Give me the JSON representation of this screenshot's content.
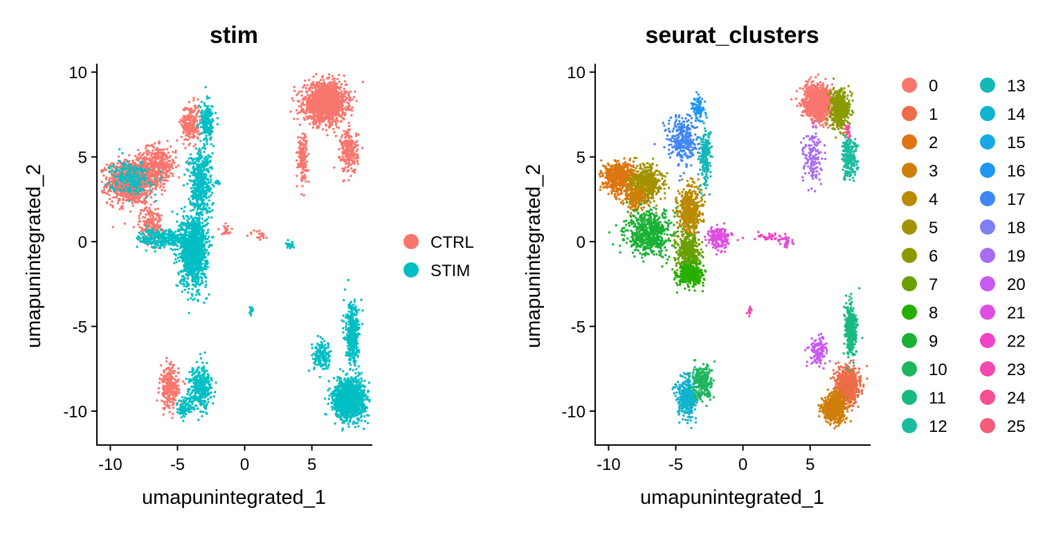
{
  "chart_data": [
    {
      "type": "scatter",
      "title": "stim",
      "xlabel": "umapunintegrated_1",
      "ylabel": "umapunintegrated_2",
      "xlim": [
        -11,
        9.5
      ],
      "ylim": [
        -12,
        10.5
      ],
      "xticks": [
        -10,
        -5,
        0,
        5
      ],
      "yticks": [
        -10,
        -5,
        0,
        5,
        10
      ],
      "grid": false,
      "legend": "right",
      "groups": [
        {
          "name": "CTRL",
          "color": "#F8766D"
        },
        {
          "name": "STIM",
          "color": "#00BFC4"
        }
      ],
      "regions": [
        {
          "group": "CTRL",
          "cx": -8.5,
          "cy": 3.5,
          "sx": 1.2,
          "sy": 0.9,
          "n": 1000
        },
        {
          "group": "CTRL",
          "cx": -6.5,
          "cy": 4.5,
          "sx": 1.0,
          "sy": 0.8,
          "n": 400
        },
        {
          "group": "CTRL",
          "cx": -4.0,
          "cy": 7.0,
          "sx": 0.5,
          "sy": 0.8,
          "n": 250
        },
        {
          "group": "CTRL",
          "cx": -7.0,
          "cy": 1.0,
          "sx": 0.6,
          "sy": 0.8,
          "n": 200
        },
        {
          "group": "CTRL",
          "cx": 6.0,
          "cy": 8.2,
          "sx": 1.1,
          "sy": 0.8,
          "n": 1500
        },
        {
          "group": "CTRL",
          "cx": 4.3,
          "cy": 5.0,
          "sx": 0.25,
          "sy": 1.0,
          "n": 150
        },
        {
          "group": "CTRL",
          "cx": 7.8,
          "cy": 5.3,
          "sx": 0.45,
          "sy": 0.9,
          "n": 250
        },
        {
          "group": "CTRL",
          "cx": -5.6,
          "cy": -8.6,
          "sx": 0.5,
          "sy": 0.9,
          "n": 250
        },
        {
          "group": "CTRL",
          "cx": -1.3,
          "cy": 0.7,
          "sx": 0.3,
          "sy": 0.2,
          "n": 20
        },
        {
          "group": "CTRL",
          "cx": 1.0,
          "cy": 0.4,
          "sx": 0.5,
          "sy": 0.2,
          "n": 20
        },
        {
          "group": "STIM",
          "cx": -3.8,
          "cy": -0.5,
          "sx": 0.7,
          "sy": 1.5,
          "n": 1200
        },
        {
          "group": "STIM",
          "cx": -3.3,
          "cy": 3.5,
          "sx": 0.6,
          "sy": 1.4,
          "n": 500
        },
        {
          "group": "STIM",
          "cx": -6.0,
          "cy": 0.2,
          "sx": 1.3,
          "sy": 0.4,
          "n": 300
        },
        {
          "group": "STIM",
          "cx": -2.8,
          "cy": 7.0,
          "sx": 0.35,
          "sy": 0.8,
          "n": 200
        },
        {
          "group": "STIM",
          "cx": -8.5,
          "cy": 3.8,
          "sx": 1.0,
          "sy": 0.7,
          "n": 250
        },
        {
          "group": "STIM",
          "cx": 7.8,
          "cy": -9.3,
          "sx": 0.8,
          "sy": 0.8,
          "n": 1500
        },
        {
          "group": "STIM",
          "cx": 8.0,
          "cy": -5.5,
          "sx": 0.35,
          "sy": 1.2,
          "n": 400
        },
        {
          "group": "STIM",
          "cx": 5.8,
          "cy": -6.8,
          "sx": 0.5,
          "sy": 0.6,
          "n": 150
        },
        {
          "group": "STIM",
          "cx": -3.3,
          "cy": -8.6,
          "sx": 0.6,
          "sy": 0.9,
          "n": 350
        },
        {
          "group": "STIM",
          "cx": -4.5,
          "cy": -9.8,
          "sx": 0.35,
          "sy": 0.4,
          "n": 100
        },
        {
          "group": "STIM",
          "cx": 3.3,
          "cy": -0.2,
          "sx": 0.3,
          "sy": 0.2,
          "n": 25
        },
        {
          "group": "STIM",
          "cx": 0.5,
          "cy": -4.1,
          "sx": 0.1,
          "sy": 0.2,
          "n": 15
        },
        {
          "group": "STIM",
          "cx": -2.0,
          "cy": 3.5,
          "sx": 0.1,
          "sy": 0.1,
          "n": 10
        }
      ]
    },
    {
      "type": "scatter",
      "title": "seurat_clusters",
      "xlabel": "umapunintegrated_1",
      "ylabel": "umapunintegrated_2",
      "xlim": [
        -11,
        9.5
      ],
      "ylim": [
        -12,
        10.5
      ],
      "xticks": [
        -10,
        -5,
        0,
        5
      ],
      "yticks": [
        -10,
        -5,
        0,
        5,
        10
      ],
      "grid": false,
      "legend": "right",
      "groups": [
        {
          "name": "0",
          "color": "#F8766D"
        },
        {
          "name": "1",
          "color": "#EC6D48"
        },
        {
          "name": "2",
          "color": "#DD7510"
        },
        {
          "name": "3",
          "color": "#CE7F0A"
        },
        {
          "name": "4",
          "color": "#B98B00"
        },
        {
          "name": "5",
          "color": "#A49300"
        },
        {
          "name": "6",
          "color": "#8A9A00"
        },
        {
          "name": "7",
          "color": "#69A000"
        },
        {
          "name": "8",
          "color": "#28AE00"
        },
        {
          "name": "9",
          "color": "#1AB135"
        },
        {
          "name": "10",
          "color": "#1EB65E"
        },
        {
          "name": "11",
          "color": "#18BA7F"
        },
        {
          "name": "12",
          "color": "#1BBC9E"
        },
        {
          "name": "13",
          "color": "#13B8B8"
        },
        {
          "name": "14",
          "color": "#11B3CE"
        },
        {
          "name": "15",
          "color": "#19A8E6"
        },
        {
          "name": "16",
          "color": "#1F97F2"
        },
        {
          "name": "17",
          "color": "#3E86F2"
        },
        {
          "name": "18",
          "color": "#7E7FF5"
        },
        {
          "name": "19",
          "color": "#A86CF0"
        },
        {
          "name": "20",
          "color": "#C85AF0"
        },
        {
          "name": "21",
          "color": "#DF4FE0"
        },
        {
          "name": "22",
          "color": "#EF45C6"
        },
        {
          "name": "23",
          "color": "#F548AE"
        },
        {
          "name": "24",
          "color": "#F74F94"
        },
        {
          "name": "25",
          "color": "#F55C79"
        }
      ],
      "regions": [
        {
          "group": "2",
          "cx": -9.2,
          "cy": 3.8,
          "sx": 0.8,
          "sy": 0.6,
          "n": 600
        },
        {
          "group": "5",
          "cx": -7.2,
          "cy": 3.5,
          "sx": 0.8,
          "sy": 0.7,
          "n": 500
        },
        {
          "group": "3",
          "cx": -8.0,
          "cy": 2.5,
          "sx": 0.6,
          "sy": 0.5,
          "n": 200
        },
        {
          "group": "9",
          "cx": -7.0,
          "cy": 0.5,
          "sx": 1.2,
          "sy": 0.9,
          "n": 600
        },
        {
          "group": "4",
          "cx": -4.0,
          "cy": 1.8,
          "sx": 0.6,
          "sy": 1.0,
          "n": 500
        },
        {
          "group": "7",
          "cx": -4.0,
          "cy": -0.6,
          "sx": 0.6,
          "sy": 0.8,
          "n": 400
        },
        {
          "group": "8",
          "cx": -4.0,
          "cy": -2.0,
          "sx": 0.7,
          "sy": 0.5,
          "n": 400
        },
        {
          "group": "17",
          "cx": -4.5,
          "cy": 6.0,
          "sx": 0.8,
          "sy": 1.0,
          "n": 300
        },
        {
          "group": "16",
          "cx": -3.3,
          "cy": 7.8,
          "sx": 0.3,
          "sy": 0.5,
          "n": 100
        },
        {
          "group": "13",
          "cx": -2.8,
          "cy": 5.0,
          "sx": 0.3,
          "sy": 1.2,
          "n": 200
        },
        {
          "group": "21",
          "cx": -1.8,
          "cy": 0.2,
          "sx": 0.6,
          "sy": 0.5,
          "n": 200
        },
        {
          "group": "22",
          "cx": 2.0,
          "cy": 0.3,
          "sx": 1.0,
          "sy": 0.2,
          "n": 40
        },
        {
          "group": "21",
          "cx": 3.3,
          "cy": -0.1,
          "sx": 0.3,
          "sy": 0.2,
          "n": 25
        },
        {
          "group": "23",
          "cx": 0.5,
          "cy": -4.1,
          "sx": 0.1,
          "sy": 0.2,
          "n": 15
        },
        {
          "group": "0",
          "cx": 5.6,
          "cy": 8.2,
          "sx": 0.8,
          "sy": 0.7,
          "n": 1000
        },
        {
          "group": "6",
          "cx": 7.2,
          "cy": 7.8,
          "sx": 0.5,
          "sy": 0.8,
          "n": 500
        },
        {
          "group": "19",
          "cx": 5.2,
          "cy": 5.0,
          "sx": 0.5,
          "sy": 1.1,
          "n": 150
        },
        {
          "group": "12",
          "cx": 7.9,
          "cy": 5.0,
          "sx": 0.4,
          "sy": 0.9,
          "n": 250
        },
        {
          "group": "1",
          "cx": 7.8,
          "cy": -8.5,
          "sx": 0.6,
          "sy": 0.7,
          "n": 800
        },
        {
          "group": "3",
          "cx": 6.8,
          "cy": -9.8,
          "sx": 0.6,
          "sy": 0.6,
          "n": 600
        },
        {
          "group": "11",
          "cx": 8.0,
          "cy": -5.2,
          "sx": 0.3,
          "sy": 1.1,
          "n": 350
        },
        {
          "group": "20",
          "cx": 5.6,
          "cy": -6.4,
          "sx": 0.45,
          "sy": 0.6,
          "n": 150
        },
        {
          "group": "14",
          "cx": -4.2,
          "cy": -9.2,
          "sx": 0.5,
          "sy": 0.9,
          "n": 400
        },
        {
          "group": "10",
          "cx": -3.0,
          "cy": -8.3,
          "sx": 0.5,
          "sy": 0.7,
          "n": 250
        },
        {
          "group": "24",
          "cx": 7.8,
          "cy": 6.5,
          "sx": 0.2,
          "sy": 0.3,
          "n": 25
        }
      ]
    }
  ]
}
